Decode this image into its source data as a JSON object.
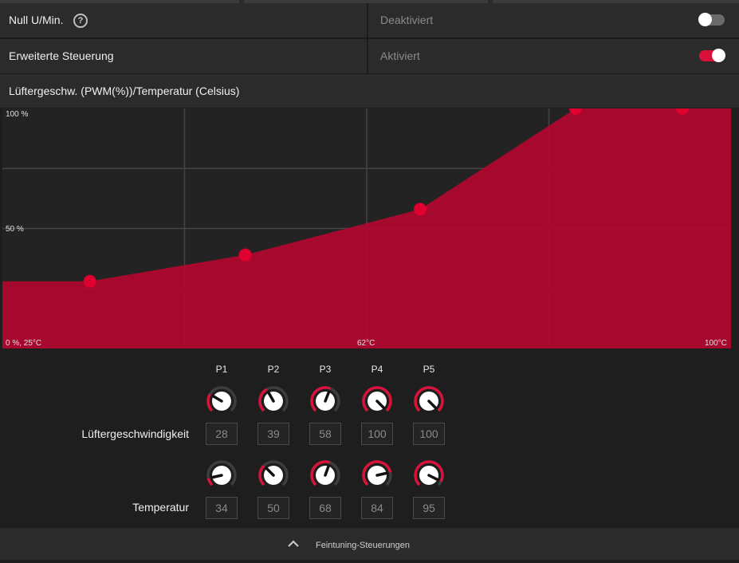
{
  "settings": {
    "zero_rpm": {
      "label": "Null U/Min.",
      "status": "Deaktiviert",
      "enabled": false
    },
    "advanced_control": {
      "label": "Erweiterte Steuerung",
      "status": "Aktiviert",
      "enabled": true
    }
  },
  "chart_title": "Lüftergeschw. (PWM(%))/Temperatur (Celsius)",
  "chart_data": {
    "type": "area",
    "title": "Lüftergeschw. (PWM(%))/Temperatur (Celsius)",
    "x": [
      34,
      50,
      68,
      84,
      95
    ],
    "y": [
      28,
      39,
      58,
      100,
      100
    ],
    "xlim": [
      25,
      100
    ],
    "ylim": [
      0,
      100
    ],
    "labels": {
      "y_top": "100 %",
      "y_mid": "50 %",
      "origin": "0 %, 25°C",
      "x_mid": "62°C",
      "x_max": "100°C"
    },
    "grid": true,
    "color": "#b0082e",
    "point_color": "#e0002d"
  },
  "points": [
    "P1",
    "P2",
    "P3",
    "P4",
    "P5"
  ],
  "fan_speed": {
    "label": "Lüftergeschwindigkeit",
    "values": [
      "28",
      "39",
      "58",
      "100",
      "100"
    ]
  },
  "temperature": {
    "label": "Temperatur",
    "values": [
      "34",
      "50",
      "68",
      "84",
      "95"
    ]
  },
  "footer": {
    "label": "Feintuning-Steuerungen",
    "icon": "chevron-up-icon"
  },
  "accent": "#d8123a"
}
